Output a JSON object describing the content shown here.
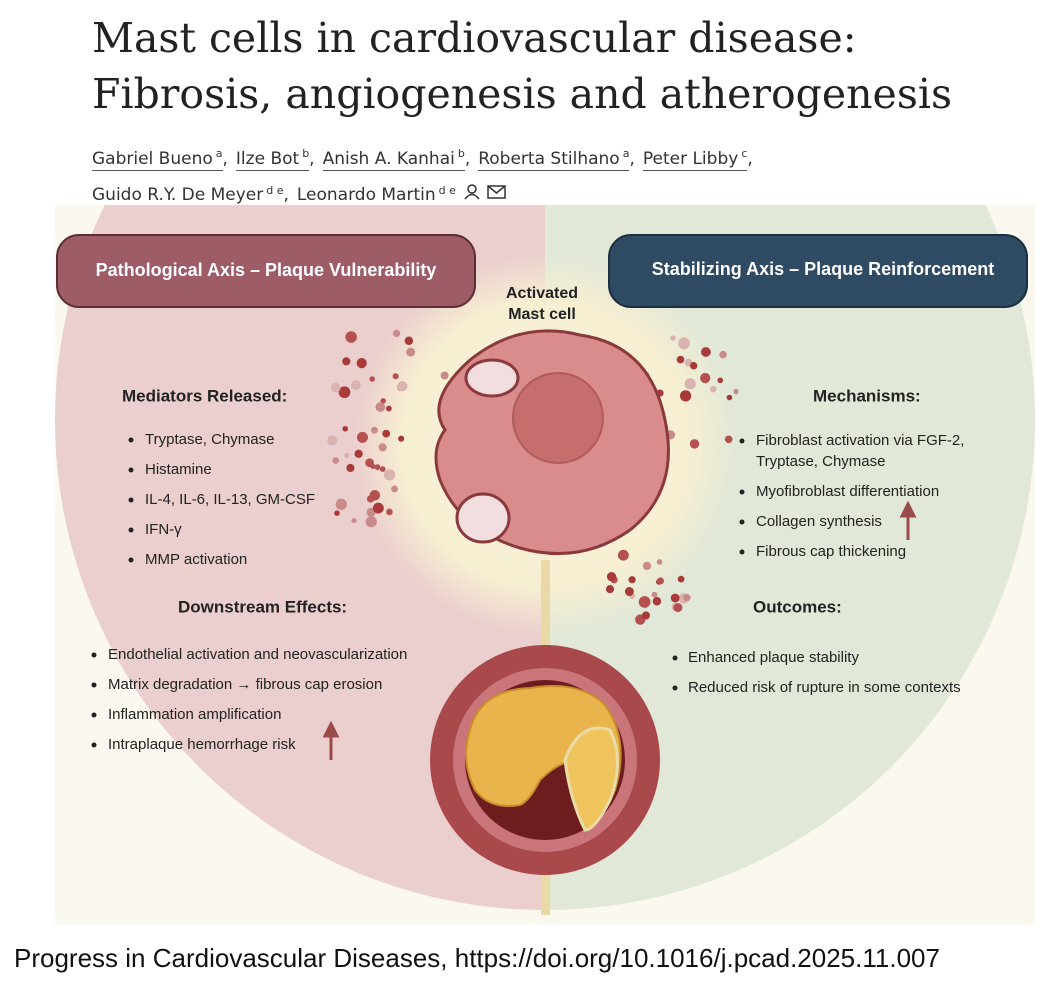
{
  "header": {
    "title_lines": [
      "Mast cells in cardiovascular disease:",
      "Fibrosis, angiogenesis and atherogenesis"
    ],
    "authors": [
      {
        "name": "Gabriel Bueno",
        "aff": "a"
      },
      {
        "name": "Ilze Bot",
        "aff": "b"
      },
      {
        "name": "Anish A. Kanhai",
        "aff": "b"
      },
      {
        "name": "Roberta Stilhano",
        "aff": "a"
      },
      {
        "name": "Peter Libby",
        "aff": "c"
      },
      {
        "name": "Guido R.Y. De Meyer",
        "aff": "d e"
      },
      {
        "name": "Leonardo Martin",
        "aff": "d e"
      }
    ]
  },
  "figure": {
    "left_header": "Pathological Axis – Plaque Vulnerability",
    "right_header": "Stabilizing Axis – Plaque Reinforcement",
    "center_label": [
      "Activated",
      "Mast cell"
    ],
    "mediators": {
      "title": "Mediators Released:",
      "items": [
        "Tryptase, Chymase",
        "Histamine",
        "IL-4, IL-6, IL-13, GM-CSF",
        "IFN-γ",
        "MMP activation"
      ]
    },
    "downstream": {
      "title": "Downstream Effects:",
      "items": [
        "Endothelial activation and neovascularization",
        "Matrix degradation → fibrous cap erosion",
        "Inflammation amplification",
        "Intraplaque hemorrhage risk"
      ]
    },
    "mechanisms": {
      "title": "Mechanisms:",
      "items": [
        [
          "Fibroblast activation via FGF-2,",
          "Tryptase, Chymase"
        ],
        [
          "Myofibroblast differentiation"
        ],
        [
          "Collagen synthesis"
        ],
        [
          "Fibrous cap thickening"
        ]
      ]
    },
    "outcomes": {
      "title": "Outcomes:",
      "items": [
        "Enhanced plaque stability",
        "Reduced risk of rupture in some contexts"
      ]
    }
  },
  "caption": "Progress in Cardiovascular Diseases, https://doi.org/10.1016/j.pcad.2025.11.007"
}
